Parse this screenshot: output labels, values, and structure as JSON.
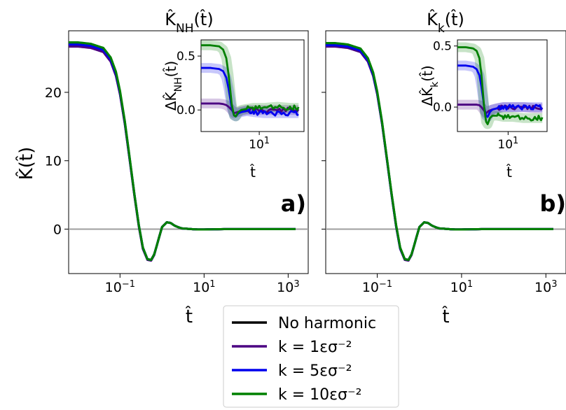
{
  "chart_data": [
    {
      "type": "line",
      "panel": "a)",
      "title": "K̂_NH(t̂)",
      "xlabel": "t̂",
      "ylabel": "K̂(t̂)",
      "xscale": "log",
      "xlim": [
        0.006,
        3000
      ],
      "ylim": [
        -6.5,
        29
      ],
      "xticks": [
        {
          "value": 0.1,
          "base": "10",
          "exp": "−1"
        },
        {
          "value": 10,
          "base": "10",
          "exp": "1"
        },
        {
          "value": 1000,
          "base": "10",
          "exp": "3"
        }
      ],
      "yticks": [
        0,
        10,
        20
      ],
      "hline": 0,
      "series": [
        {
          "name": "No harmonic",
          "color": "#000000",
          "x": [
            0.006,
            0.01,
            0.02,
            0.04,
            0.06,
            0.08,
            0.1,
            0.13,
            0.17,
            0.22,
            0.28,
            0.35,
            0.45,
            0.55,
            0.65,
            0.75,
            0.85,
            1.0,
            1.3,
            1.6,
            2.0,
            2.5,
            3.0,
            4.0,
            5.0,
            7.0,
            10,
            30,
            100,
            300,
            1000,
            1500
          ],
          "y": [
            26.8,
            26.8,
            26.6,
            26.0,
            24.6,
            22.5,
            19.8,
            15.5,
            10.2,
            5.0,
            0.5,
            -2.8,
            -4.4,
            -4.5,
            -3.7,
            -2.4,
            -1.2,
            0.3,
            1.0,
            0.9,
            0.5,
            0.25,
            0.1,
            0.05,
            0.0,
            -0.05,
            -0.05,
            0.0,
            0.0,
            0.0,
            0.0,
            0.0
          ]
        },
        {
          "name": "k = 1εσ⁻²",
          "color": "#4b0082",
          "x": [
            0.006,
            0.01,
            0.02,
            0.04,
            0.06,
            0.08,
            0.1,
            0.13,
            0.17,
            0.22,
            0.28,
            0.35,
            0.45,
            0.55,
            0.65,
            0.75,
            0.85,
            1.0,
            1.3,
            1.6,
            2.0,
            2.5,
            3.0,
            4.0,
            5.0,
            7.0,
            10,
            30,
            100,
            300,
            1000,
            1500
          ],
          "y": [
            26.7,
            26.7,
            26.5,
            25.9,
            24.5,
            22.4,
            19.7,
            15.4,
            10.1,
            4.9,
            0.4,
            -2.9,
            -4.5,
            -4.6,
            -3.8,
            -2.4,
            -1.2,
            0.3,
            1.0,
            0.9,
            0.5,
            0.25,
            0.1,
            0.05,
            0.0,
            -0.05,
            -0.05,
            0.0,
            0.0,
            0.0,
            0.0,
            0.0
          ]
        },
        {
          "name": "k = 5εσ⁻²",
          "color": "#0000ee",
          "x": [
            0.006,
            0.01,
            0.02,
            0.04,
            0.06,
            0.08,
            0.1,
            0.13,
            0.17,
            0.22,
            0.28,
            0.35,
            0.45,
            0.55,
            0.65,
            0.75,
            0.85,
            1.0,
            1.3,
            1.6,
            2.0,
            2.5,
            3.0,
            4.0,
            5.0,
            7.0,
            10,
            30,
            100,
            300,
            1000,
            1500
          ],
          "y": [
            27.0,
            27.0,
            26.8,
            26.2,
            24.8,
            22.7,
            20.0,
            15.7,
            10.3,
            5.1,
            0.6,
            -2.7,
            -4.4,
            -4.5,
            -3.7,
            -2.4,
            -1.2,
            0.3,
            1.0,
            0.9,
            0.5,
            0.25,
            0.1,
            0.05,
            0.0,
            -0.05,
            -0.05,
            0.0,
            0.0,
            0.0,
            0.0,
            0.0
          ]
        },
        {
          "name": "k = 10εσ⁻²",
          "color": "#008000",
          "x": [
            0.006,
            0.01,
            0.02,
            0.04,
            0.06,
            0.08,
            0.1,
            0.13,
            0.17,
            0.22,
            0.28,
            0.35,
            0.45,
            0.55,
            0.65,
            0.75,
            0.85,
            1.0,
            1.3,
            1.6,
            2.0,
            2.5,
            3.0,
            4.0,
            5.0,
            7.0,
            10,
            30,
            100,
            300,
            1000,
            1500
          ],
          "y": [
            27.3,
            27.3,
            27.1,
            26.5,
            25.1,
            23.0,
            20.2,
            15.8,
            10.4,
            5.1,
            0.6,
            -2.7,
            -4.4,
            -4.5,
            -3.7,
            -2.4,
            -1.2,
            0.3,
            1.0,
            0.9,
            0.5,
            0.25,
            0.1,
            0.05,
            0.0,
            -0.05,
            -0.05,
            0.0,
            0.0,
            0.0,
            0.0,
            0.0
          ]
        }
      ],
      "inset": {
        "ylabel": "ΔK̂_NH(t̂)",
        "xlabel": "t̂",
        "xscale": "log",
        "xlim": [
          0.006,
          3000
        ],
        "ylim": [
          -0.2,
          0.65
        ],
        "yticks": [
          0.0,
          0.5
        ],
        "xticks": [
          {
            "value": 10,
            "base": "10",
            "exp": "1"
          }
        ],
        "series": [
          {
            "name": "k = 1εσ⁻²",
            "color": "#4b0082",
            "x": [
              0.006,
              0.02,
              0.06,
              0.1,
              0.15,
              0.2,
              0.3,
              0.4,
              0.6,
              1.0,
              2.0,
              5,
              20,
              100,
              500,
              1500
            ],
            "y": [
              0.06,
              0.06,
              0.06,
              0.055,
              0.045,
              0.03,
              0.0,
              -0.03,
              -0.02,
              -0.01,
              0.0,
              0.0,
              0.0,
              0.0,
              0.0,
              0.0
            ]
          },
          {
            "name": "k = 5εσ⁻²",
            "color": "#0000ee",
            "x": [
              0.006,
              0.02,
              0.06,
              0.1,
              0.15,
              0.2,
              0.25,
              0.3,
              0.4,
              0.5,
              0.7,
              1.0,
              2.0,
              5,
              20,
              100,
              500,
              1500
            ],
            "y": [
              0.39,
              0.39,
              0.38,
              0.36,
              0.3,
              0.2,
              0.1,
              0.02,
              -0.05,
              -0.06,
              -0.03,
              -0.02,
              -0.01,
              -0.02,
              -0.03,
              -0.03,
              -0.03,
              -0.03
            ]
          },
          {
            "name": "k = 10εσ⁻²",
            "color": "#008000",
            "x": [
              0.006,
              0.02,
              0.06,
              0.1,
              0.15,
              0.2,
              0.25,
              0.3,
              0.4,
              0.5,
              0.7,
              1.0,
              2.0,
              5,
              20,
              100,
              500,
              1500
            ],
            "y": [
              0.6,
              0.6,
              0.59,
              0.56,
              0.48,
              0.33,
              0.18,
              0.05,
              -0.05,
              -0.06,
              -0.02,
              0.0,
              0.01,
              0.02,
              0.02,
              0.03,
              0.02,
              0.02
            ]
          }
        ]
      }
    },
    {
      "type": "line",
      "panel": "b)",
      "title": "K̂_k(t̂)",
      "xlabel": "t̂",
      "ylabel": "",
      "xscale": "log",
      "xlim": [
        0.006,
        3000
      ],
      "ylim": [
        -6.5,
        29
      ],
      "xticks": [
        {
          "value": 0.1,
          "base": "10",
          "exp": "−1"
        },
        {
          "value": 10,
          "base": "10",
          "exp": "1"
        },
        {
          "value": 1000,
          "base": "10",
          "exp": "3"
        }
      ],
      "yticks": [],
      "hline": 0,
      "series": [
        {
          "name": "No harmonic",
          "color": "#000000",
          "x": [
            0.006,
            0.01,
            0.02,
            0.04,
            0.06,
            0.08,
            0.1,
            0.13,
            0.17,
            0.22,
            0.28,
            0.35,
            0.45,
            0.55,
            0.65,
            0.75,
            0.85,
            1.0,
            1.3,
            1.6,
            2.0,
            2.5,
            3.0,
            4.0,
            5.0,
            7.0,
            10,
            30,
            100,
            300,
            1000,
            1500
          ],
          "y": [
            26.8,
            26.8,
            26.6,
            26.0,
            24.6,
            22.5,
            19.8,
            15.5,
            10.2,
            5.0,
            0.5,
            -2.8,
            -4.4,
            -4.5,
            -3.7,
            -2.4,
            -1.2,
            0.3,
            1.0,
            0.9,
            0.5,
            0.25,
            0.1,
            0.05,
            0.0,
            -0.05,
            -0.05,
            0.0,
            0.0,
            0.0,
            0.0,
            0.0
          ]
        },
        {
          "name": "k = 1εσ⁻²",
          "color": "#4b0082",
          "x": [
            0.006,
            0.01,
            0.02,
            0.04,
            0.06,
            0.08,
            0.1,
            0.13,
            0.17,
            0.22,
            0.28,
            0.35,
            0.45,
            0.55,
            0.65,
            0.75,
            0.85,
            1.0,
            1.3,
            1.6,
            2.0,
            2.5,
            3.0,
            4.0,
            5.0,
            7.0,
            10,
            30,
            100,
            300,
            1000,
            1500
          ],
          "y": [
            26.7,
            26.7,
            26.5,
            25.9,
            24.5,
            22.4,
            19.7,
            15.4,
            10.1,
            4.9,
            0.4,
            -2.9,
            -4.5,
            -4.6,
            -3.8,
            -2.4,
            -1.2,
            0.3,
            1.0,
            0.9,
            0.5,
            0.25,
            0.1,
            0.05,
            0.0,
            -0.05,
            -0.05,
            0.0,
            0.0,
            0.0,
            0.0,
            0.0
          ]
        },
        {
          "name": "k = 5εσ⁻²",
          "color": "#0000ee",
          "x": [
            0.006,
            0.01,
            0.02,
            0.04,
            0.06,
            0.08,
            0.1,
            0.13,
            0.17,
            0.22,
            0.28,
            0.35,
            0.45,
            0.55,
            0.65,
            0.75,
            0.85,
            1.0,
            1.3,
            1.6,
            2.0,
            2.5,
            3.0,
            4.0,
            5.0,
            7.0,
            10,
            30,
            100,
            300,
            1000,
            1500
          ],
          "y": [
            26.9,
            26.9,
            26.7,
            26.1,
            24.7,
            22.6,
            19.9,
            15.6,
            10.2,
            5.0,
            0.5,
            -2.8,
            -4.4,
            -4.5,
            -3.7,
            -2.4,
            -1.2,
            0.3,
            1.0,
            0.9,
            0.5,
            0.25,
            0.1,
            0.05,
            0.0,
            -0.05,
            -0.05,
            0.0,
            0.0,
            0.0,
            0.0,
            0.0
          ]
        },
        {
          "name": "k = 10εσ⁻²",
          "color": "#008000",
          "x": [
            0.006,
            0.01,
            0.02,
            0.04,
            0.06,
            0.08,
            0.1,
            0.13,
            0.17,
            0.22,
            0.28,
            0.35,
            0.45,
            0.55,
            0.65,
            0.75,
            0.85,
            1.0,
            1.3,
            1.6,
            2.0,
            2.5,
            3.0,
            4.0,
            5.0,
            7.0,
            10,
            30,
            100,
            300,
            1000,
            1500
          ],
          "y": [
            27.2,
            27.2,
            27.0,
            26.4,
            25.0,
            22.9,
            20.1,
            15.7,
            10.3,
            5.1,
            0.6,
            -2.7,
            -4.4,
            -4.5,
            -3.7,
            -2.4,
            -1.2,
            0.3,
            1.0,
            0.9,
            0.5,
            0.25,
            0.1,
            0.05,
            0.0,
            -0.05,
            -0.05,
            0.0,
            0.0,
            0.0,
            0.0,
            0.0
          ]
        }
      ],
      "inset": {
        "ylabel": "ΔK̂_k(t̂)",
        "xlabel": "t̂",
        "xscale": "log",
        "xlim": [
          0.006,
          3000
        ],
        "ylim": [
          -0.2,
          0.55
        ],
        "yticks": [
          0.0,
          0.5
        ],
        "xticks": [
          {
            "value": 10,
            "base": "10",
            "exp": "1"
          }
        ],
        "series": [
          {
            "name": "k = 1εσ⁻²",
            "color": "#4b0082",
            "x": [
              0.006,
              0.02,
              0.06,
              0.1,
              0.15,
              0.2,
              0.3,
              0.4,
              0.6,
              1.0,
              2.0,
              5,
              20,
              100,
              500,
              1500
            ],
            "y": [
              0.02,
              0.02,
              0.02,
              0.02,
              0.015,
              0.0,
              -0.03,
              -0.05,
              -0.03,
              -0.02,
              -0.01,
              0.0,
              0.0,
              0.0,
              -0.01,
              -0.01
            ]
          },
          {
            "name": "k = 5εσ⁻²",
            "color": "#0000ee",
            "x": [
              0.006,
              0.02,
              0.06,
              0.1,
              0.15,
              0.2,
              0.25,
              0.3,
              0.4,
              0.5,
              0.7,
              1.0,
              2.0,
              5,
              20,
              100,
              500,
              1500
            ],
            "y": [
              0.34,
              0.34,
              0.33,
              0.31,
              0.26,
              0.17,
              0.08,
              0.0,
              -0.07,
              -0.08,
              -0.04,
              -0.02,
              -0.01,
              0.0,
              0.0,
              0.0,
              0.0,
              0.0
            ]
          },
          {
            "name": "k = 10εσ⁻²",
            "color": "#008000",
            "x": [
              0.006,
              0.02,
              0.06,
              0.1,
              0.15,
              0.2,
              0.25,
              0.3,
              0.4,
              0.5,
              0.7,
              1.0,
              2.0,
              5,
              20,
              100,
              500,
              1500
            ],
            "y": [
              0.49,
              0.49,
              0.48,
              0.46,
              0.4,
              0.27,
              0.12,
              0.0,
              -0.12,
              -0.14,
              -0.09,
              -0.07,
              -0.07,
              -0.08,
              -0.08,
              -0.09,
              -0.09,
              -0.09
            ]
          }
        ]
      }
    }
  ],
  "legend": {
    "placement": "bottom-center",
    "items": [
      {
        "label": "No harmonic",
        "color": "#000000"
      },
      {
        "label": "k = 1εσ⁻²",
        "color": "#4b0082"
      },
      {
        "label": "k = 5εσ⁻²",
        "color": "#0000ee"
      },
      {
        "label": "k = 10εσ⁻²",
        "color": "#008000"
      }
    ]
  }
}
